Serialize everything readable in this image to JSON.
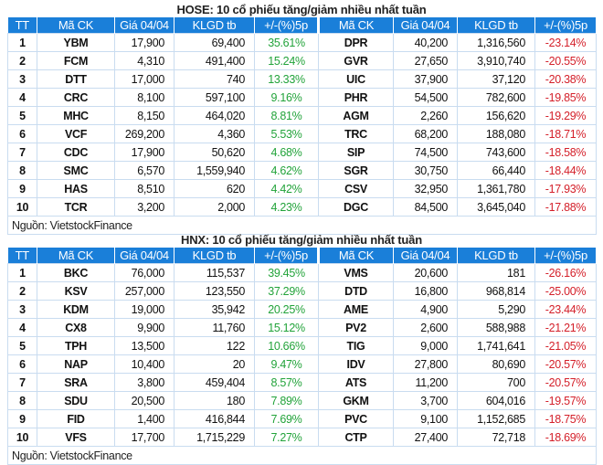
{
  "colors": {
    "header": "#1a7fd9",
    "up": "#22a33a",
    "down": "#d4202a"
  },
  "tables": [
    {
      "title": "HOSE: 10 cổ phiếu tăng/giảm nhiều nhất tuần",
      "headers": [
        "TT",
        "Mã CK",
        "Giá 04/04",
        "KLGD tb",
        "+/-(%)5p",
        "Mã CK",
        "Giá 04/04",
        "KLGD tb",
        "+/-(%)5p"
      ],
      "rows": [
        [
          "1",
          "YBM",
          "17,900",
          "69,400",
          "35.61%",
          "DPR",
          "40,200",
          "1,316,560",
          "-23.14%"
        ],
        [
          "2",
          "FCM",
          "4,310",
          "491,400",
          "15.24%",
          "GVR",
          "27,650",
          "3,910,740",
          "-20.55%"
        ],
        [
          "3",
          "DTT",
          "17,000",
          "740",
          "13.33%",
          "UIC",
          "37,900",
          "37,120",
          "-20.38%"
        ],
        [
          "4",
          "CRC",
          "8,100",
          "597,100",
          "9.16%",
          "PHR",
          "54,500",
          "782,600",
          "-19.85%"
        ],
        [
          "5",
          "MHC",
          "8,150",
          "464,020",
          "8.81%",
          "AGM",
          "2,260",
          "156,620",
          "-19.29%"
        ],
        [
          "6",
          "VCF",
          "269,200",
          "4,360",
          "5.53%",
          "TRC",
          "68,200",
          "188,080",
          "-18.71%"
        ],
        [
          "7",
          "CDC",
          "17,900",
          "50,620",
          "4.68%",
          "SIP",
          "74,500",
          "743,600",
          "-18.58%"
        ],
        [
          "8",
          "SMC",
          "6,570",
          "1,559,940",
          "4.62%",
          "SGR",
          "30,750",
          "66,440",
          "-18.44%"
        ],
        [
          "9",
          "HAS",
          "8,510",
          "620",
          "4.42%",
          "CSV",
          "32,950",
          "1,361,780",
          "-17.93%"
        ],
        [
          "10",
          "TCR",
          "3,200",
          "2,000",
          "4.23%",
          "DGC",
          "84,500",
          "3,645,040",
          "-17.88%"
        ]
      ],
      "source": "Nguồn: VietstockFinance"
    },
    {
      "title": "HNX: 10 cổ phiếu tăng/giảm nhiều nhất tuần",
      "headers": [
        "TT",
        "Mã CK",
        "Giá 04/04",
        "KLGD tb",
        "+/-(%)5p",
        "Mã CK",
        "Giá 04/04",
        "KLGD tb",
        "+/-(%)5p"
      ],
      "rows": [
        [
          "1",
          "BKC",
          "76,000",
          "115,537",
          "39.45%",
          "VMS",
          "20,600",
          "181",
          "-26.16%"
        ],
        [
          "2",
          "KSV",
          "257,000",
          "123,550",
          "37.29%",
          "DTD",
          "16,800",
          "968,814",
          "-25.00%"
        ],
        [
          "3",
          "KDM",
          "19,000",
          "35,942",
          "20.25%",
          "AME",
          "4,900",
          "5,290",
          "-23.44%"
        ],
        [
          "4",
          "CX8",
          "9,900",
          "11,760",
          "15.12%",
          "PV2",
          "2,600",
          "588,988",
          "-21.21%"
        ],
        [
          "5",
          "TPH",
          "13,500",
          "122",
          "10.66%",
          "TIG",
          "9,000",
          "1,741,641",
          "-21.05%"
        ],
        [
          "6",
          "NAP",
          "10,400",
          "20",
          "9.47%",
          "IDV",
          "27,800",
          "80,690",
          "-20.57%"
        ],
        [
          "7",
          "SRA",
          "3,800",
          "459,404",
          "8.57%",
          "ATS",
          "11,200",
          "700",
          "-20.57%"
        ],
        [
          "8",
          "SDU",
          "20,500",
          "180",
          "7.89%",
          "GKM",
          "3,700",
          "604,016",
          "-19.57%"
        ],
        [
          "9",
          "FID",
          "1,400",
          "416,844",
          "7.69%",
          "PVC",
          "9,100",
          "1,152,685",
          "-18.75%"
        ],
        [
          "10",
          "VFS",
          "17,700",
          "1,715,229",
          "7.27%",
          "CTP",
          "27,400",
          "72,718",
          "-18.69%"
        ]
      ],
      "source": "Nguồn: VietstockFinance"
    }
  ]
}
